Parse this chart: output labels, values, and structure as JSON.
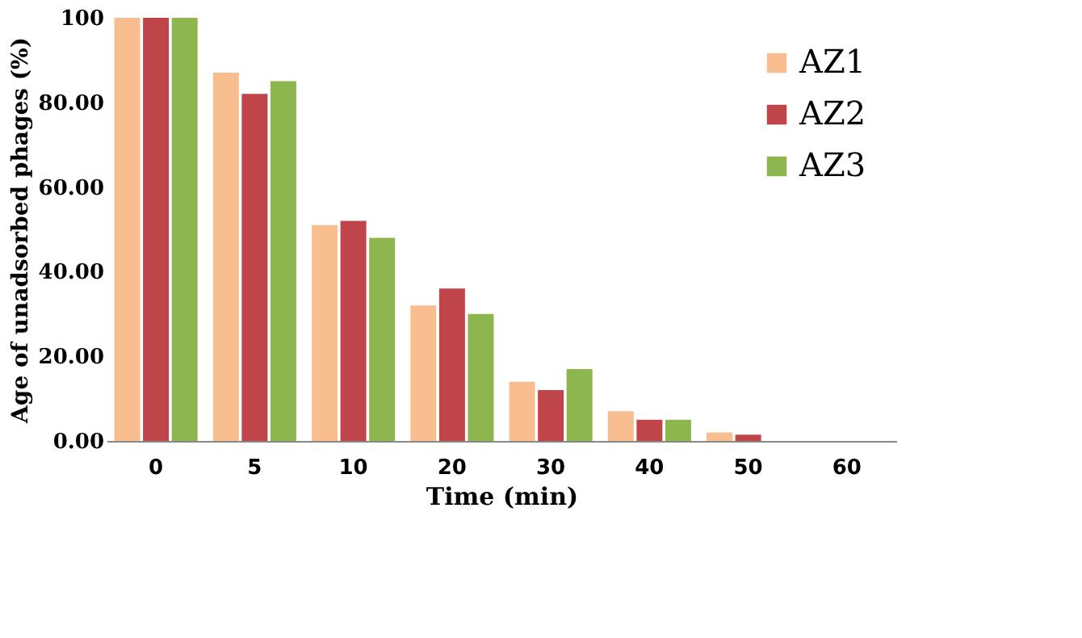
{
  "chart_data": {
    "type": "bar",
    "xlabel": "Time (min)",
    "ylabel": "Age of unadsorbed phages (%)",
    "categories": [
      "0",
      "5",
      "10",
      "20",
      "30",
      "40",
      "50",
      "60"
    ],
    "series": [
      {
        "name": "AZ1",
        "color": "#f9be8f",
        "values": [
          100,
          87,
          51,
          32,
          14,
          7,
          2,
          null
        ]
      },
      {
        "name": "AZ2",
        "color": "#c0454a",
        "values": [
          100,
          82,
          52,
          36,
          12,
          5,
          1.5,
          null
        ]
      },
      {
        "name": "AZ3",
        "color": "#8db64f",
        "values": [
          100,
          85,
          48,
          30,
          17,
          5,
          null,
          null
        ]
      }
    ],
    "ylim": [
      0,
      100
    ],
    "yticks": [
      {
        "value": 0,
        "label": "0.00"
      },
      {
        "value": 20,
        "label": "20.00"
      },
      {
        "value": 40,
        "label": "40.00"
      },
      {
        "value": 60,
        "label": "60.00"
      },
      {
        "value": 80,
        "label": "80.00"
      },
      100
    ],
    "grid": false,
    "legend": "top right"
  }
}
